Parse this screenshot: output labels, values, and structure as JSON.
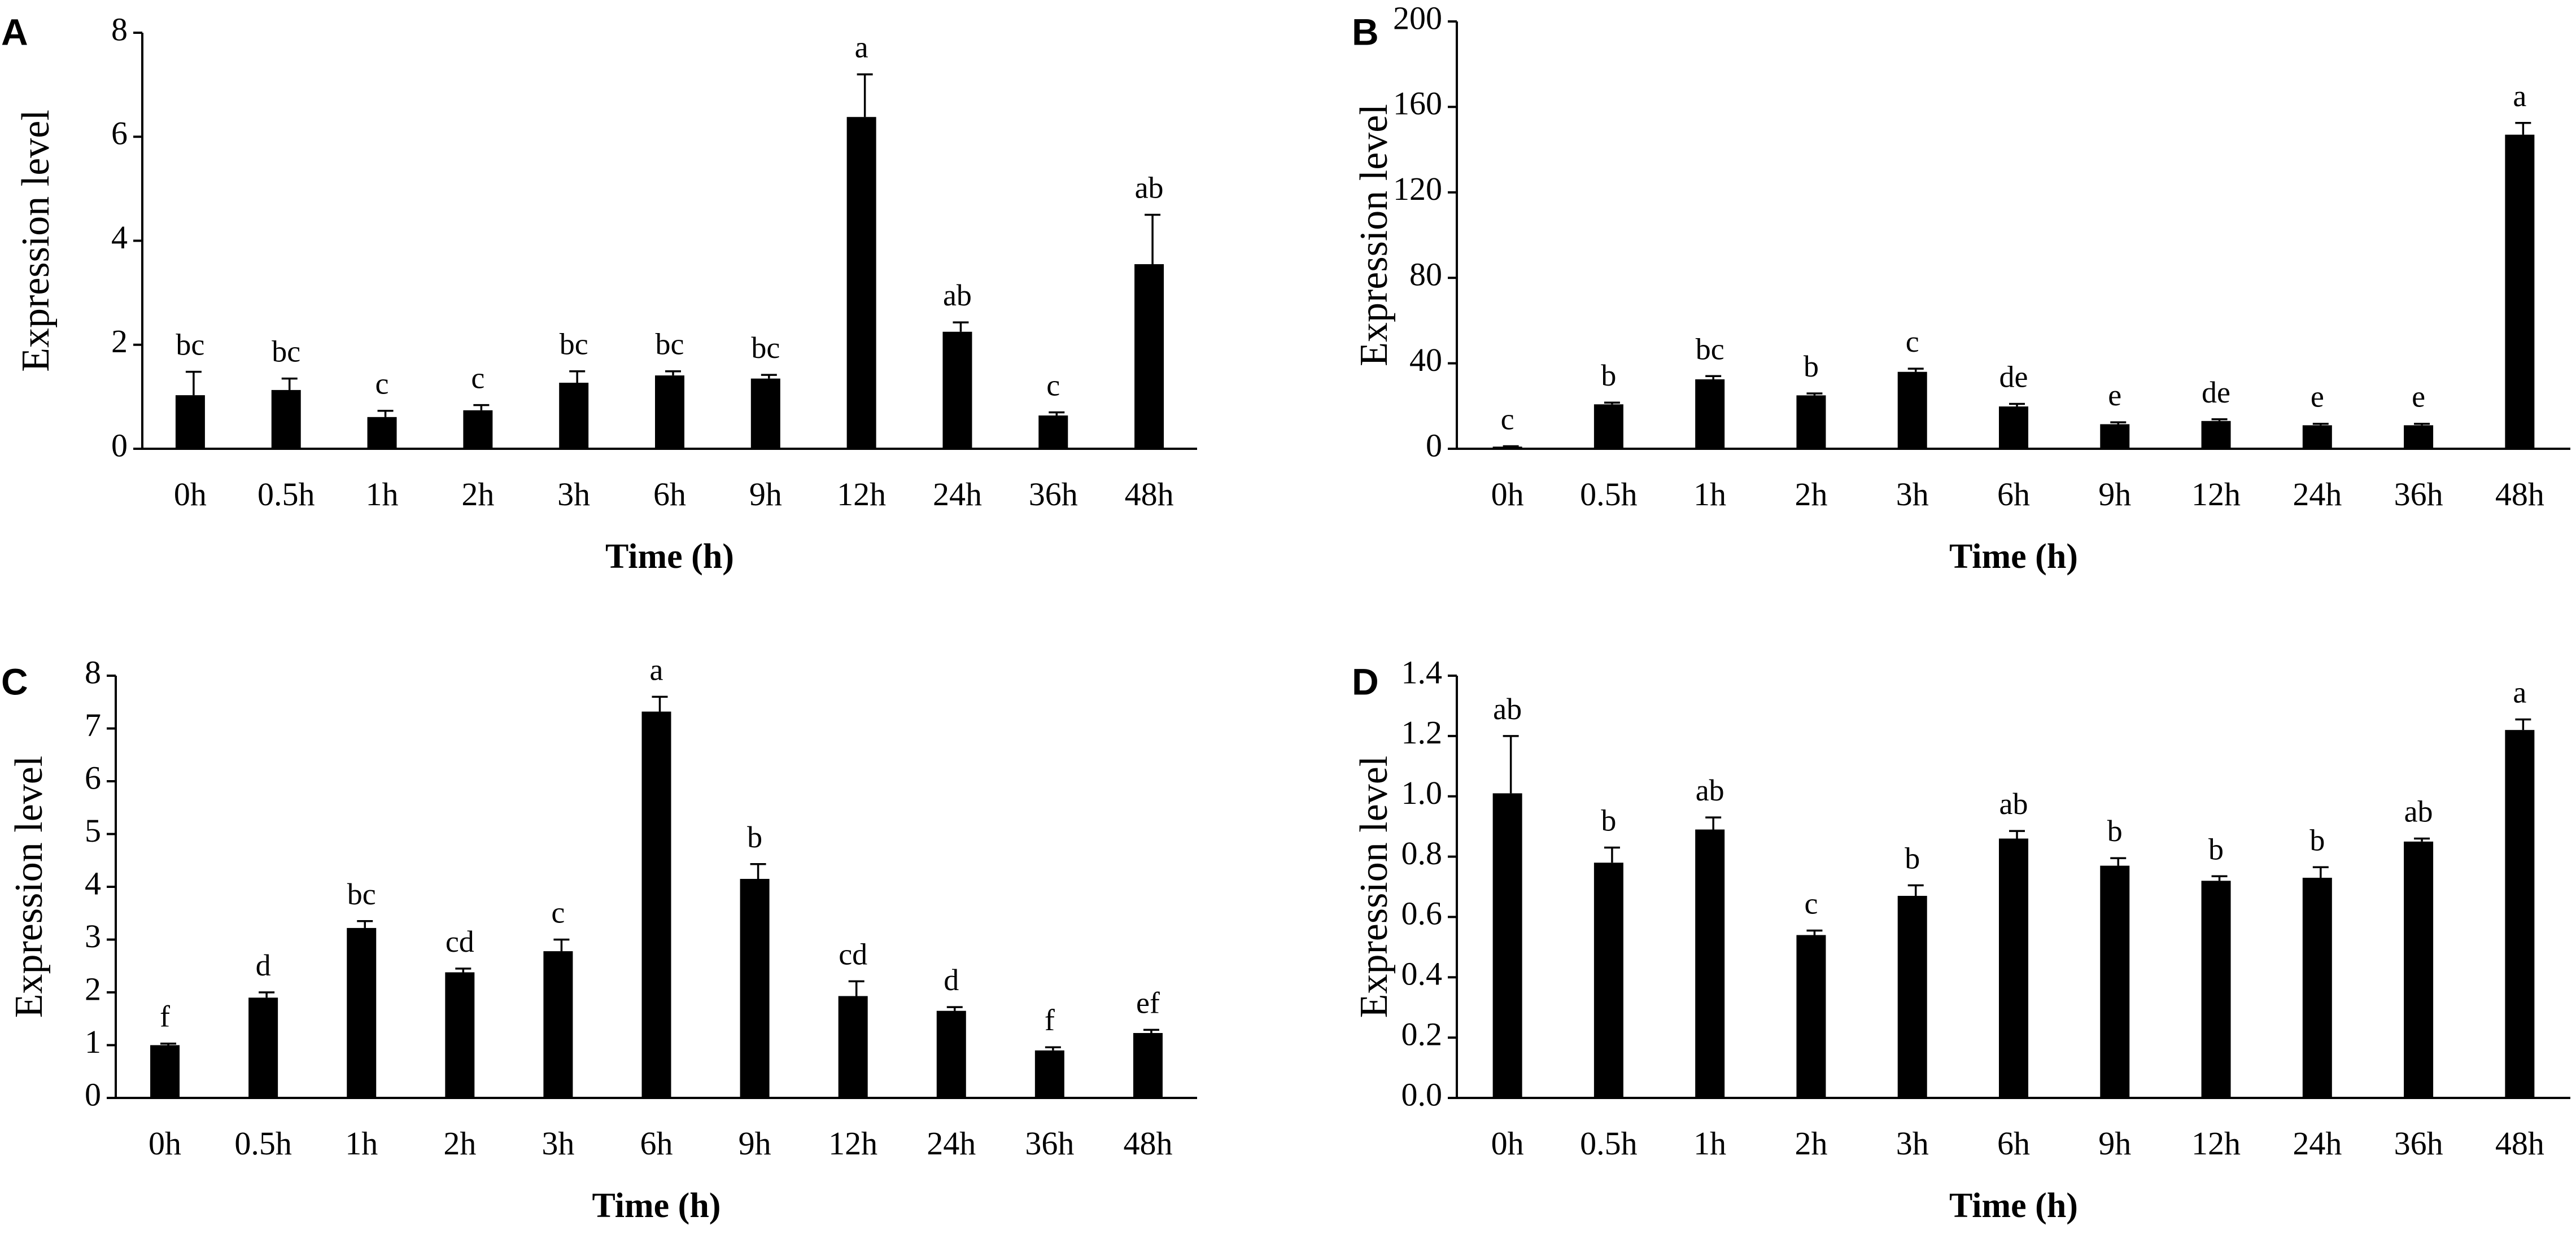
{
  "chart_data": [
    {
      "panel": "A",
      "type": "bar",
      "ylabel": "Expression level",
      "xlabel": "Time (h)",
      "ylim": [
        0,
        8
      ],
      "yticks": [
        0,
        2,
        4,
        6,
        8
      ],
      "categories": [
        "0h",
        "0.5h",
        "1h",
        "2h",
        "3h",
        "6h",
        "9h",
        "12h",
        "24h",
        "36h",
        "48h"
      ],
      "values": [
        1.03,
        1.13,
        0.61,
        0.74,
        1.27,
        1.41,
        1.35,
        6.38,
        2.25,
        0.64,
        3.55
      ],
      "errors": [
        0.45,
        0.22,
        0.12,
        0.1,
        0.22,
        0.08,
        0.07,
        0.82,
        0.18,
        0.06,
        0.95
      ],
      "significance": [
        "bc",
        "bc",
        "c",
        "c",
        "bc",
        "bc",
        "bc",
        "a",
        "ab",
        "c",
        "ab"
      ]
    },
    {
      "panel": "B",
      "type": "bar",
      "ylabel": "Expression level",
      "xlabel": "Time (h)",
      "ylim": [
        0,
        200
      ],
      "yticks": [
        0,
        40,
        80,
        120,
        160,
        200
      ],
      "categories": [
        "0h",
        "0.5h",
        "1h",
        "2h",
        "3h",
        "6h",
        "9h",
        "12h",
        "24h",
        "36h",
        "48h"
      ],
      "values": [
        1.0,
        20.8,
        32.5,
        25.0,
        36.0,
        19.8,
        11.5,
        13.0,
        11.0,
        11.0,
        147.0
      ],
      "errors": [
        0.2,
        0.8,
        1.5,
        0.9,
        1.5,
        1.2,
        0.9,
        0.8,
        0.7,
        0.7,
        5.5
      ],
      "significance": [
        "c",
        "b",
        "bc",
        "b",
        "c",
        "de",
        "e",
        "de",
        "e",
        "e",
        "a"
      ]
    },
    {
      "panel": "C",
      "type": "bar",
      "ylabel": "Expression level",
      "xlabel": "Time (h)",
      "ylim": [
        0,
        8
      ],
      "yticks": [
        0,
        1,
        2,
        3,
        4,
        5,
        6,
        7,
        8
      ],
      "categories": [
        "0h",
        "0.5h",
        "1h",
        "2h",
        "3h",
        "6h",
        "9h",
        "12h",
        "24h",
        "36h",
        "48h"
      ],
      "values": [
        1.0,
        1.9,
        3.22,
        2.38,
        2.78,
        7.32,
        4.15,
        1.93,
        1.65,
        0.9,
        1.23
      ],
      "errors": [
        0.03,
        0.1,
        0.13,
        0.07,
        0.22,
        0.28,
        0.28,
        0.28,
        0.07,
        0.06,
        0.06
      ],
      "significance": [
        "f",
        "d",
        "bc",
        "cd",
        "c",
        "a",
        "b",
        "cd",
        "d",
        "f",
        "ef"
      ]
    },
    {
      "panel": "D",
      "type": "bar",
      "ylabel": "Expression level",
      "xlabel": "Time (h)",
      "ylim": [
        0,
        1.4
      ],
      "yticks": [
        "0.0",
        "0.2",
        "0.4",
        "0.6",
        "0.8",
        "1.0",
        "1.2",
        "1.4"
      ],
      "categories": [
        "0h",
        "0.5h",
        "1h",
        "2h",
        "3h",
        "6h",
        "9h",
        "12h",
        "24h",
        "36h",
        "48h"
      ],
      "values": [
        1.01,
        0.78,
        0.89,
        0.54,
        0.67,
        0.86,
        0.77,
        0.72,
        0.73,
        0.85,
        1.22
      ],
      "errors": [
        0.19,
        0.05,
        0.04,
        0.015,
        0.035,
        0.025,
        0.025,
        0.015,
        0.035,
        0.01,
        0.035
      ],
      "significance": [
        "ab",
        "b",
        "ab",
        "c",
        "b",
        "ab",
        "b",
        "b",
        "b",
        "ab",
        "a"
      ]
    }
  ]
}
